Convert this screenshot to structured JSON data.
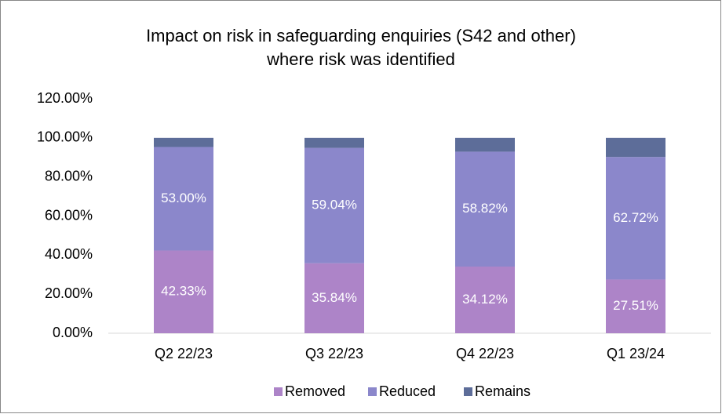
{
  "chart_data": {
    "type": "stacked_bar",
    "title": [
      "Impact on risk in safeguarding enquiries (S42 and other)",
      "where risk was identified"
    ],
    "categories": [
      "Q2 22/23",
      "Q3 22/23",
      "Q4 22/23",
      "Q1 23/24"
    ],
    "series": [
      {
        "name": "Removed",
        "color": "#ad84c8",
        "values": [
          42.33,
          35.84,
          34.12,
          27.51
        ],
        "value_labels": [
          "42.33%",
          "35.84%",
          "34.12%",
          "27.51%"
        ]
      },
      {
        "name": "Reduced",
        "color": "#8b87cb",
        "values": [
          53.0,
          59.04,
          58.82,
          62.72
        ],
        "value_labels": [
          "53.00%",
          "59.04%",
          "58.82%",
          "62.72%"
        ]
      },
      {
        "name": "Remains",
        "color": "#5d6d99",
        "values": [
          4.67,
          5.12,
          7.06,
          9.77
        ]
      }
    ],
    "ylim": [
      0,
      120
    ],
    "yticks": [
      {
        "value": 0,
        "label": "0.00%"
      },
      {
        "value": 20,
        "label": "20.00%"
      },
      {
        "value": 40,
        "label": "40.00%"
      },
      {
        "value": 60,
        "label": "60.00%"
      },
      {
        "value": 80,
        "label": "80.00%"
      },
      {
        "value": 100,
        "label": "100.00%"
      },
      {
        "value": 120,
        "label": "120.00%"
      }
    ],
    "grid": false,
    "legend": "bottom"
  }
}
